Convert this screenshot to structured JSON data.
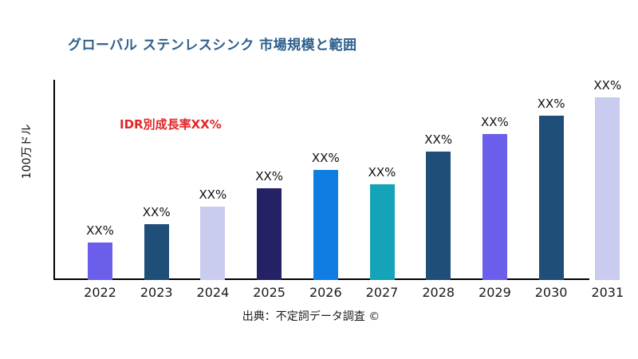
{
  "page": {
    "background": "#ffffff"
  },
  "header": {
    "title": "グローバル ステンレスシンク 市場規模と範囲",
    "title_color": "#2E5F8C"
  },
  "annotation": {
    "text": "IDR別成長率XX%",
    "color": "#E22528"
  },
  "source": {
    "text": "出典：不定詞データ調査 ©"
  },
  "chart_data": {
    "type": "bar",
    "title": "グローバル ステンレスシンク 市場規模と範囲",
    "categories": [
      "2022",
      "2023",
      "2024",
      "2025",
      "2026",
      "2027",
      "2028",
      "2029",
      "2030",
      "2031"
    ],
    "values": [
      47,
      70,
      92,
      115,
      138,
      120,
      161,
      183,
      206,
      229
    ],
    "values_note": "y-axis has no numeric ticks; values are relative bar heights estimated from pixels, scale 0-250",
    "value_labels": [
      "XX%",
      "XX%",
      "XX%",
      "XX%",
      "XX%",
      "XX%",
      "XX%",
      "XX%",
      "XX%",
      "XX%"
    ],
    "bar_colors": [
      "#6B5EEB",
      "#1F4E79",
      "#C9CCEF",
      "#252167",
      "#0F7DE2",
      "#14A3B8",
      "#1F4E79",
      "#6B5EEB",
      "#1F4E79",
      "#C9CCEF"
    ],
    "xlabel": "",
    "ylabel": "100万ドル",
    "ylim": [
      0,
      250
    ],
    "grid": false,
    "legend": false,
    "annotation": "IDR別成長率XX%"
  }
}
